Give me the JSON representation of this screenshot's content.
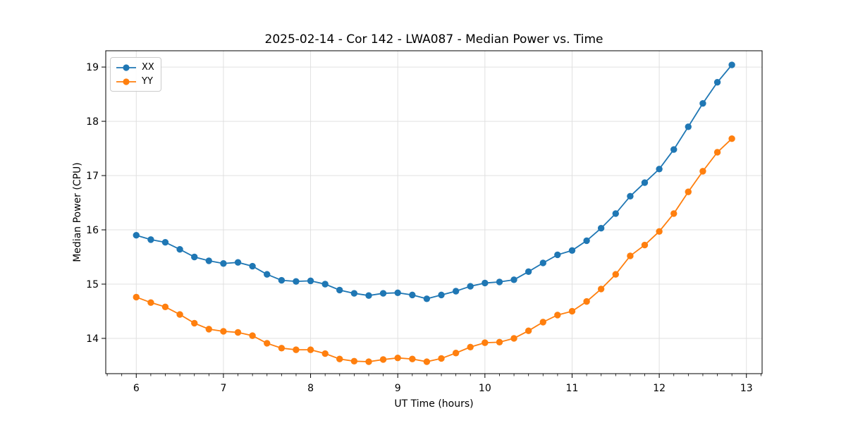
{
  "figure": {
    "background": "#ffffff"
  },
  "chart_data": {
    "type": "line",
    "title": "2025-02-14 - Cor 142 - LWA087 - Median Power vs. Time",
    "xlabel": "UT Time (hours)",
    "ylabel": "Median Power (CPU)",
    "xlim": [
      5.65,
      13.18
    ],
    "ylim": [
      13.35,
      19.3
    ],
    "x_ticks": [
      6,
      7,
      8,
      9,
      10,
      11,
      12,
      13
    ],
    "y_ticks": [
      14,
      15,
      16,
      17,
      18,
      19
    ],
    "x_minor_tick_step": 0.16667,
    "grid": true,
    "legend_position": "upper-left",
    "x": [
      6.0,
      6.167,
      6.333,
      6.5,
      6.667,
      6.833,
      7.0,
      7.167,
      7.333,
      7.5,
      7.667,
      7.833,
      8.0,
      8.167,
      8.333,
      8.5,
      8.667,
      8.833,
      9.0,
      9.167,
      9.333,
      9.5,
      9.667,
      9.833,
      10.0,
      10.167,
      10.333,
      10.5,
      10.667,
      10.833,
      11.0,
      11.167,
      11.333,
      11.5,
      11.667,
      11.833,
      12.0,
      12.167,
      12.333,
      12.5,
      12.667,
      12.833
    ],
    "series": [
      {
        "name": "XX",
        "color": "#1f77b4",
        "marker": "circle",
        "values": [
          15.9,
          15.82,
          15.77,
          15.64,
          15.5,
          15.43,
          15.38,
          15.4,
          15.33,
          15.18,
          15.07,
          15.05,
          15.06,
          15.0,
          14.89,
          14.83,
          14.79,
          14.83,
          14.84,
          14.8,
          14.73,
          14.8,
          14.87,
          14.96,
          15.02,
          15.04,
          15.08,
          15.23,
          15.39,
          15.54,
          15.62,
          15.8,
          16.03,
          16.3,
          16.62,
          16.87,
          17.12,
          17.48,
          17.9,
          18.33,
          18.72,
          19.04
        ]
      },
      {
        "name": "YY",
        "color": "#ff7f0e",
        "marker": "circle",
        "values": [
          14.76,
          14.66,
          14.58,
          14.44,
          14.28,
          14.17,
          14.13,
          14.11,
          14.05,
          13.91,
          13.82,
          13.79,
          13.79,
          13.72,
          13.62,
          13.58,
          13.57,
          13.61,
          13.64,
          13.62,
          13.57,
          13.63,
          13.73,
          13.84,
          13.92,
          13.93,
          14.0,
          14.14,
          14.3,
          14.43,
          14.5,
          14.68,
          14.91,
          15.18,
          15.52,
          15.72,
          15.97,
          16.3,
          16.7,
          17.08,
          17.43,
          17.68
        ]
      }
    ]
  },
  "colors": {
    "grid": "#e0e0e0",
    "axis_frame": "#000000",
    "tick": "#000000",
    "background": "#ffffff",
    "legend_border": "#cccccc",
    "series_xx": "#1f77b4",
    "series_yy": "#ff7f0e"
  }
}
